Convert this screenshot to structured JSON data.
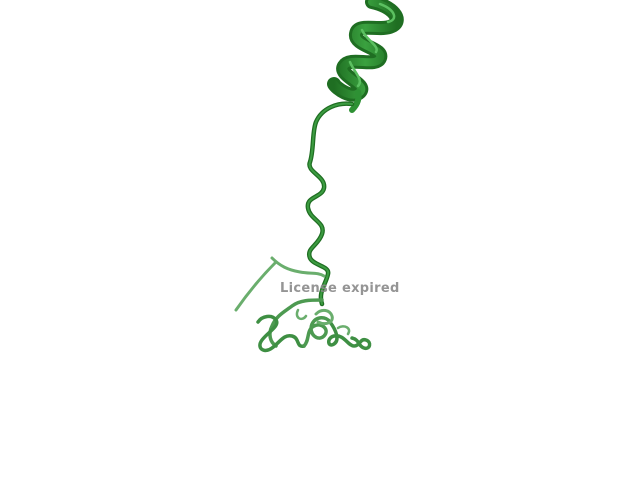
{
  "watermark": {
    "text": "License expired"
  },
  "colors": {
    "background": "#ffffff",
    "helix_dark": "#1f6e22",
    "helix_mid": "#2e9134",
    "helix_light": "#49b14d",
    "coil": "#2f8f36",
    "coil_light": "#5aa85e"
  }
}
